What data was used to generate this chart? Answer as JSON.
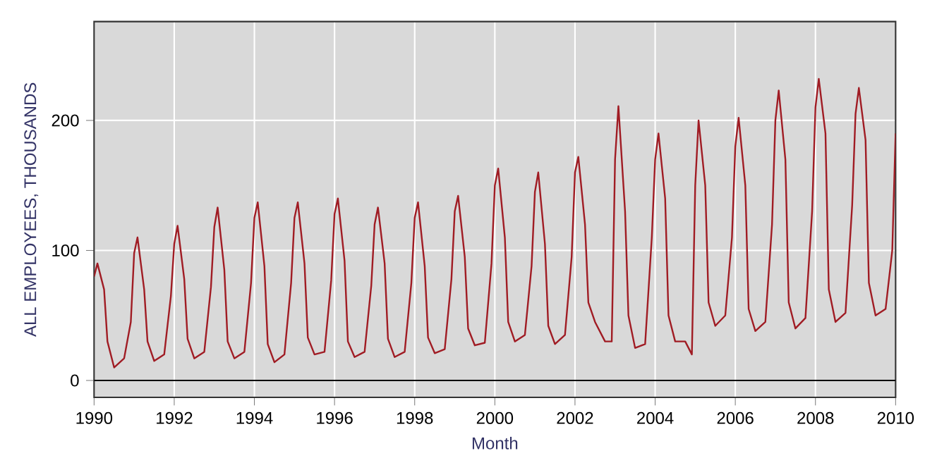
{
  "chart_data": {
    "type": "line",
    "xlabel": "Month",
    "ylabel": "ALL EMPLOYEES, THOUSANDS",
    "x": [
      "1990-01",
      "1990-02",
      "1990-04",
      "1990-05",
      "1990-07",
      "1990-10",
      "1990-12",
      "1991-01",
      "1991-02",
      "1991-04",
      "1991-05",
      "1991-07",
      "1991-10",
      "1991-12",
      "1992-01",
      "1992-02",
      "1992-04",
      "1992-05",
      "1992-07",
      "1992-10",
      "1992-12",
      "1993-01",
      "1993-02",
      "1993-04",
      "1993-05",
      "1993-07",
      "1993-10",
      "1993-12",
      "1994-01",
      "1994-02",
      "1994-04",
      "1994-05",
      "1994-07",
      "1994-10",
      "1994-12",
      "1995-01",
      "1995-02",
      "1995-04",
      "1995-05",
      "1995-07",
      "1995-10",
      "1995-12",
      "1996-01",
      "1996-02",
      "1996-04",
      "1996-05",
      "1996-07",
      "1996-10",
      "1996-12",
      "1997-01",
      "1997-02",
      "1997-04",
      "1997-05",
      "1997-07",
      "1997-10",
      "1997-12",
      "1998-01",
      "1998-02",
      "1998-04",
      "1998-05",
      "1998-07",
      "1998-10",
      "1998-12",
      "1999-01",
      "1999-02",
      "1999-04",
      "1999-05",
      "1999-07",
      "1999-10",
      "1999-12",
      "2000-01",
      "2000-02",
      "2000-04",
      "2000-05",
      "2000-07",
      "2000-10",
      "2000-12",
      "2001-01",
      "2001-02",
      "2001-04",
      "2001-05",
      "2001-07",
      "2001-10",
      "2001-12",
      "2002-01",
      "2002-02",
      "2002-04",
      "2002-05",
      "2002-07",
      "2002-10",
      "2002-12",
      "2003-01",
      "2003-02",
      "2003-04",
      "2003-05",
      "2003-07",
      "2003-10",
      "2003-12",
      "2004-01",
      "2004-02",
      "2004-04",
      "2004-05",
      "2004-07",
      "2004-10",
      "2004-12",
      "2005-01",
      "2005-02",
      "2005-04",
      "2005-05",
      "2005-07",
      "2005-10",
      "2005-12",
      "2006-01",
      "2006-02",
      "2006-04",
      "2006-05",
      "2006-07",
      "2006-10",
      "2006-12",
      "2007-01",
      "2007-02",
      "2007-04",
      "2007-05",
      "2007-07",
      "2007-10",
      "2007-12",
      "2008-01",
      "2008-02",
      "2008-04",
      "2008-05",
      "2008-07",
      "2008-10",
      "2008-12",
      "2009-01",
      "2009-02",
      "2009-04",
      "2009-05",
      "2009-07",
      "2009-10",
      "2009-12",
      "2010-01"
    ],
    "series": [
      {
        "color": "#a01c24",
        "values": [
          80,
          90,
          70,
          30,
          10,
          17,
          45,
          98,
          110,
          70,
          30,
          15,
          20,
          65,
          105,
          119,
          78,
          32,
          17,
          22,
          72,
          118,
          133,
          85,
          30,
          17,
          22,
          75,
          125,
          137,
          88,
          28,
          14,
          20,
          75,
          125,
          137,
          90,
          33,
          20,
          22,
          77,
          128,
          140,
          92,
          30,
          18,
          22,
          73,
          120,
          133,
          90,
          32,
          18,
          22,
          75,
          125,
          137,
          88,
          33,
          21,
          24,
          78,
          130,
          142,
          95,
          40,
          27,
          29,
          90,
          150,
          163,
          110,
          45,
          30,
          35,
          88,
          145,
          160,
          105,
          42,
          28,
          35,
          95,
          160,
          172,
          120,
          60,
          45,
          30,
          30,
          170,
          211,
          130,
          50,
          25,
          28,
          110,
          170,
          190,
          140,
          50,
          30,
          30,
          20,
          150,
          200,
          150,
          60,
          42,
          50,
          110,
          180,
          202,
          150,
          55,
          38,
          45,
          120,
          200,
          223,
          170,
          60,
          40,
          48,
          130,
          210,
          232,
          190,
          70,
          45,
          52,
          135,
          205,
          225,
          185,
          75,
          50,
          55,
          100,
          190
        ]
      }
    ],
    "xlim": [
      "1990",
      "2010"
    ],
    "ylim": [
      -13,
      276
    ],
    "xticks": [
      "1990",
      "1992",
      "1994",
      "1996",
      "1998",
      "2000",
      "2002",
      "2004",
      "2006",
      "2008",
      "2010"
    ],
    "yticks": [
      0,
      100,
      200
    ],
    "grid": true,
    "marker": "none",
    "line_style": "solid",
    "ref_lines": [
      {
        "axis": "y",
        "value": 0,
        "color": "#000000"
      }
    ]
  }
}
